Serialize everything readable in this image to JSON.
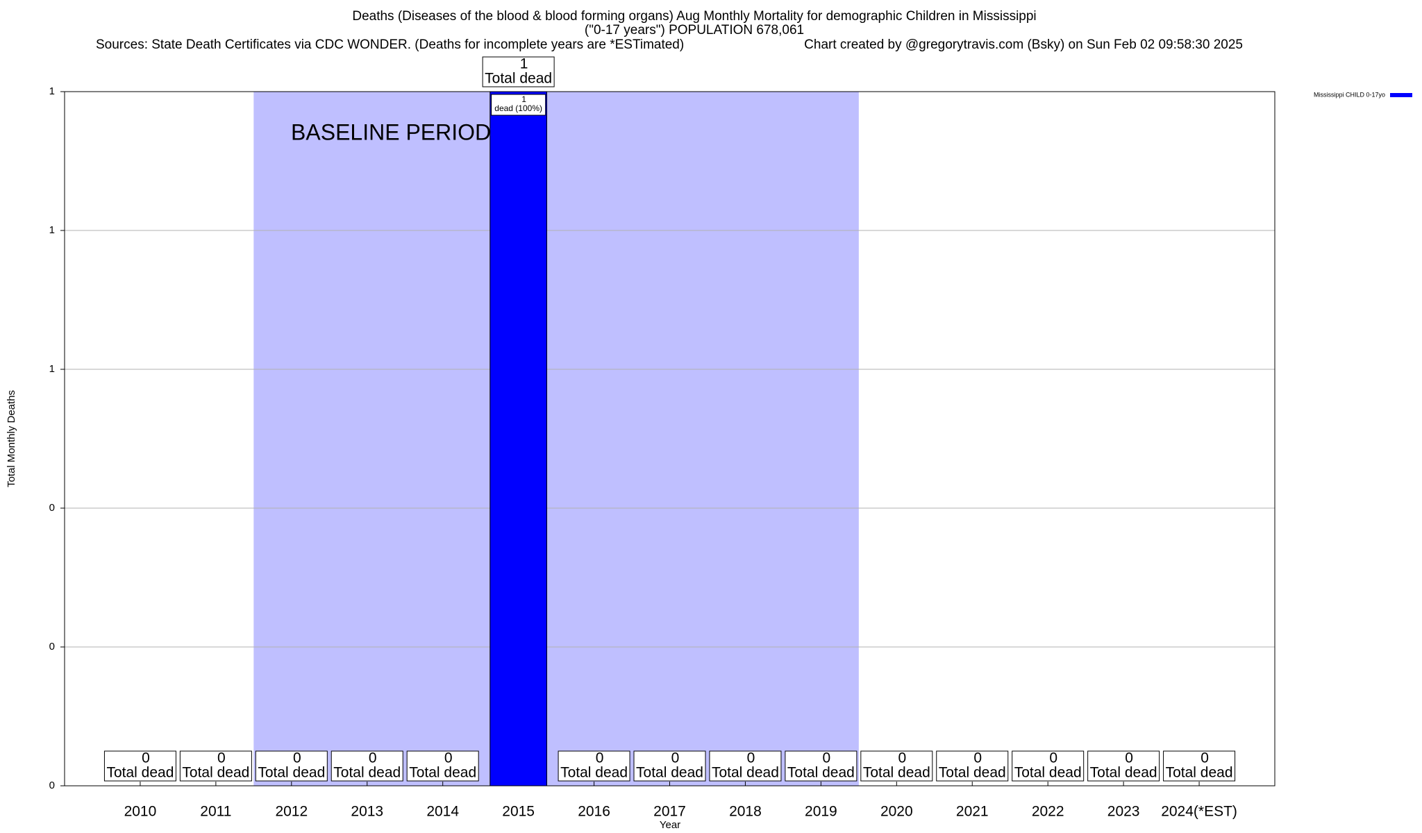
{
  "chart_data": {
    "type": "bar",
    "title": "Deaths (Diseases of the blood & blood forming organs) Aug Monthly Mortality for demographic Children in Mississippi",
    "subtitle": "(\"0-17 years\") POPULATION 678,061",
    "source": "Sources: State Death Certificates via CDC WONDER. (Deaths for incomplete years are *ESTimated)",
    "credit": "Chart created by @gregorytravis.com (Bsky) on Sun Feb 02 09:58:30 2025",
    "x_label": "Year",
    "y_label": "Total Monthly Deaths",
    "categories": [
      "2010",
      "2011",
      "2012",
      "2013",
      "2014",
      "2015",
      "2016",
      "2017",
      "2018",
      "2019",
      "2020",
      "2021",
      "2022",
      "2023",
      "2024(*EST)"
    ],
    "series": [
      {
        "name": "Mississippi CHILD 0-17yo",
        "color": "#0000ff",
        "values": [
          0,
          0,
          0,
          0,
          0,
          1,
          0,
          0,
          0,
          0,
          0,
          0,
          0,
          0,
          0
        ]
      }
    ],
    "value_label_caption": "Total dead",
    "bar_inner_caption": "dead (100%)",
    "baseline": {
      "label": "BASELINE PERIOD",
      "start": "2012",
      "end": "2019",
      "color": "#bfbfff"
    },
    "ylim": [
      0,
      1
    ],
    "yticks": [
      0,
      {
        "value": 0.2,
        "label": "0"
      },
      {
        "value": 0.4,
        "label": "0"
      },
      {
        "value": 0.6,
        "label": "1"
      },
      {
        "value": 0.8,
        "label": "1"
      },
      1
    ],
    "grid": true,
    "legend": "top-right"
  }
}
